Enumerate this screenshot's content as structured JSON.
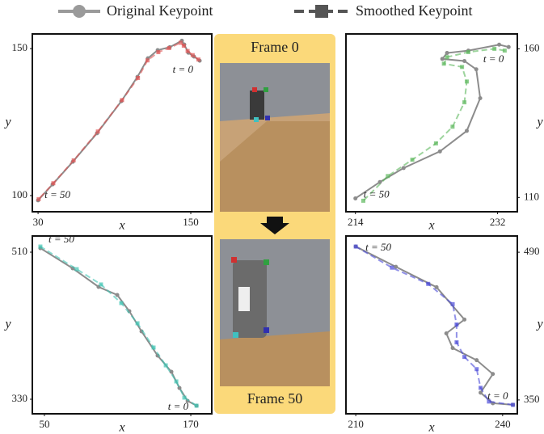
{
  "chart_data": [
    {
      "type": "line",
      "xlabel": "x",
      "ylabel": "y",
      "xlim": [
        25.5,
        166.5
      ],
      "ylim": [
        94.5,
        155
      ],
      "xticks": [
        30,
        150
      ],
      "yticks": [
        100,
        150
      ],
      "series": [
        {
          "name": "Original Keypoint",
          "color": "#8c8c8c",
          "x": [
            157,
            152.5,
            148.1,
            144.9,
            143,
            133.5,
            124,
            116.3,
            108.1,
            95.4,
            76.3,
            57.3,
            41.4,
            30
          ],
          "values": [
            145.9,
            147.3,
            148.6,
            151.4,
            152.7,
            150.5,
            149.5,
            146.7,
            140.4,
            132.1,
            121.2,
            111.5,
            103.8,
            98.4
          ]
        },
        {
          "name": "Smoothed Keypoint",
          "color": "#e05555",
          "x": [
            156,
            151.5,
            147.5,
            144.5,
            142,
            133,
            124.5,
            116,
            108.5,
            96,
            77,
            58,
            42,
            30.5
          ],
          "values": [
            146.3,
            147.8,
            149.2,
            151,
            152,
            150.2,
            148.8,
            146,
            140,
            132.5,
            121.8,
            112,
            104.2,
            98.8
          ]
        }
      ],
      "annotations": [
        {
          "text": "t = 0"
        },
        {
          "text": "t = 50"
        }
      ]
    },
    {
      "type": "line",
      "xlabel": "x",
      "ylabel": "y",
      "xlim": [
        212.8,
        234.5
      ],
      "ylim": [
        105.2,
        165
      ],
      "xticks": [
        214,
        232
      ],
      "yticks": [
        110,
        160
      ],
      "series": [
        {
          "name": "Original Keypoint",
          "color": "#8c8c8c",
          "x": [
            233.4,
            232.2,
            228.3,
            225.6,
            225,
            227.8,
            229.3,
            229.8,
            228.1,
            224.7,
            220.1,
            217.1,
            214
          ],
          "values": [
            160.6,
            161.4,
            159.4,
            158.6,
            156.6,
            155.9,
            153.1,
            143.4,
            132.4,
            125.5,
            119.9,
            115.2,
            109.7
          ]
        },
        {
          "name": "Smoothed Keypoint",
          "color": "#5cb85c",
          "x": [
            232.9,
            231.6,
            228.3,
            225.6,
            225.2,
            227.5,
            228.1,
            227.8,
            226.3,
            224.2,
            221.2,
            218.1,
            215
          ],
          "values": [
            159.4,
            160,
            158.9,
            157.2,
            155,
            153.9,
            149,
            142,
            133.8,
            128.2,
            122.7,
            117.2,
            108.9
          ]
        }
      ],
      "annotations": [
        {
          "text": "t = 0"
        },
        {
          "text": "t = 50"
        }
      ]
    },
    {
      "type": "line",
      "xlabel": "x",
      "ylabel": "y",
      "xlim": [
        40.1,
        187.2
      ],
      "ylim": [
        312.2,
        529.8
      ],
      "xticks": [
        50,
        170
      ],
      "yticks": [
        330,
        510
      ],
      "series": [
        {
          "name": "Original Keypoint",
          "color": "#8c8c8c",
          "x": [
            174.7,
            167.4,
            160.7,
            154.1,
            142.8,
            129.6,
            119.6,
            109.7,
            94.4,
            73.2,
            46.7
          ],
          "values": [
            322.1,
            328,
            343.8,
            363.6,
            383.4,
            413.1,
            437.8,
            457.6,
            467.5,
            490.2,
            514.9
          ]
        },
        {
          "name": "Smoothed Keypoint",
          "color": "#40c4b4",
          "x": [
            174.7,
            164.7,
            158.1,
            149.5,
            139.5,
            126.3,
            113,
            96.4,
            76.5,
            46.7
          ],
          "values": [
            322.1,
            332,
            351.8,
            371.5,
            393.3,
            423,
            447.7,
            470.5,
            489.2,
            516.9
          ]
        }
      ],
      "annotations": [
        {
          "text": "t = 0"
        },
        {
          "text": "t = 50"
        }
      ]
    },
    {
      "type": "line",
      "xlabel": "x",
      "ylabel": "y",
      "xlim": [
        208,
        243
      ],
      "ylim": [
        336.9,
        505.4
      ],
      "xticks": [
        210,
        240
      ],
      "yticks": [
        350,
        490
      ],
      "series": [
        {
          "name": "Original Keypoint",
          "color": "#8c8c8c",
          "x": [
            242.1,
            238,
            235.5,
            238,
            234.7,
            229.8,
            228.5,
            232.2,
            226.5,
            218.2,
            210
          ],
          "values": [
            345.4,
            346.9,
            356.9,
            374.6,
            387.7,
            399.2,
            413.1,
            426.2,
            456.9,
            476.2,
            495.4
          ]
        },
        {
          "name": "Smoothed Keypoint",
          "color": "#4a4ad8",
          "x": [
            242.1,
            237.2,
            235.5,
            234.7,
            232.2,
            230.6,
            230.6,
            229.8,
            224.8,
            217.4,
            210
          ],
          "values": [
            345.4,
            348.5,
            361.5,
            379.2,
            390.8,
            404.6,
            421.5,
            440.8,
            460,
            475.4,
            495.4
          ]
        }
      ],
      "annotations": [
        {
          "text": "t = 0"
        },
        {
          "text": "t = 50"
        }
      ]
    }
  ],
  "frames": [
    "Frame 0",
    "Frame 50"
  ]
}
